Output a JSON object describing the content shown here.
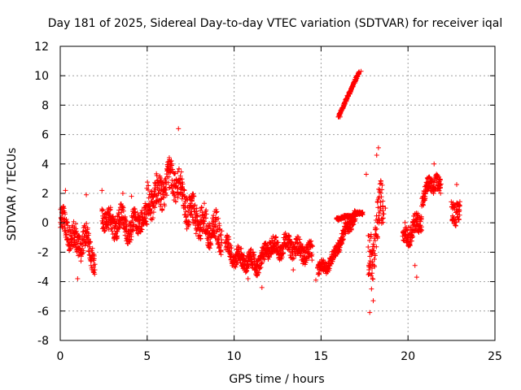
{
  "chart_data": {
    "type": "scatter",
    "title": "Day 181 of 2025, Sidereal Day-to-day VTEC variation (SDTVAR) for receiver iqal",
    "xlabel": "GPS time / hours",
    "ylabel": "SDTVAR / TECUs",
    "xlim": [
      0,
      25
    ],
    "ylim": [
      -8,
      12
    ],
    "xticks": [
      0,
      5,
      10,
      15,
      20,
      25
    ],
    "yticks": [
      -8,
      -6,
      -4,
      -2,
      0,
      2,
      4,
      6,
      8,
      10,
      12
    ],
    "grid": true,
    "marker": "+",
    "series_color": "#ff0000",
    "segments": [
      {
        "x": [
          0.0,
          0.5,
          1.0,
          1.5,
          2.0
        ],
        "y": [
          0.2,
          -0.6,
          -1.5,
          -1.0,
          -2.6
        ],
        "spread": 1.3
      },
      {
        "x": [
          2.4,
          3.0,
          3.6,
          4.0,
          4.5,
          5.0
        ],
        "y": [
          0.6,
          -0.3,
          0.3,
          -0.6,
          0.3,
          0.2
        ],
        "spread": 1.2
      },
      {
        "x": [
          5.0,
          5.5,
          6.0,
          6.5,
          7.0,
          7.5,
          8.0,
          8.5,
          9.0,
          9.3
        ],
        "y": [
          1.5,
          1.8,
          2.5,
          3.2,
          2.0,
          0.6,
          0.2,
          -0.5,
          -0.6,
          -1.0
        ],
        "spread": 1.6
      },
      {
        "x": [
          9.5,
          10.0,
          10.5,
          11.0,
          11.5,
          12.0,
          12.5,
          13.0,
          13.5,
          14.0,
          14.5
        ],
        "y": [
          -1.5,
          -2.3,
          -2.5,
          -2.7,
          -2.8,
          -1.5,
          -1.8,
          -1.4,
          -1.7,
          -2.0,
          -2.1
        ],
        "spread": 0.9
      },
      {
        "x": [
          14.8,
          15.2,
          15.6,
          16.0,
          16.4,
          16.8,
          17.0
        ],
        "y": [
          -3.2,
          -3.0,
          -2.6,
          -1.5,
          -0.6,
          0.2,
          0.5
        ],
        "spread": 0.6
      },
      {
        "x": [
          16.0,
          16.4,
          16.8,
          17.2
        ],
        "y": [
          7.3,
          8.2,
          9.3,
          10.2
        ],
        "spread": 0.15
      },
      {
        "x": [
          15.9,
          16.5,
          17.0,
          17.4
        ],
        "y": [
          0.3,
          0.4,
          0.6,
          0.7
        ],
        "spread": 0.15
      },
      {
        "x": [
          17.7,
          18.0,
          18.3,
          18.6
        ],
        "y": [
          -3.0,
          -2.0,
          0.5,
          1.0
        ],
        "spread": 2.2
      },
      {
        "x": [
          19.7,
          20.0,
          20.4,
          20.8
        ],
        "y": [
          -1.0,
          -0.7,
          -0.3,
          0.3
        ],
        "spread": 1.0
      },
      {
        "x": [
          20.8,
          21.2,
          21.6,
          21.9
        ],
        "y": [
          1.5,
          2.5,
          2.8,
          2.2
        ],
        "spread": 0.8
      },
      {
        "x": [
          22.5,
          22.8,
          23.0
        ],
        "y": [
          0.5,
          1.0,
          1.0
        ],
        "spread": 1.2
      }
    ],
    "points": [
      [
        16.1,
        7.2
      ],
      [
        17.3,
        10.3
      ],
      [
        6.8,
        6.4
      ],
      [
        18.3,
        5.1
      ],
      [
        18.2,
        4.6
      ],
      [
        21.5,
        4.0
      ],
      [
        1.5,
        1.9
      ],
      [
        1.0,
        -3.8
      ],
      [
        1.9,
        -3.3
      ],
      [
        17.8,
        -6.1
      ],
      [
        18.0,
        -5.3
      ],
      [
        17.9,
        -4.5
      ],
      [
        11.6,
        -4.4
      ],
      [
        14.7,
        -3.9
      ],
      [
        20.5,
        -3.7
      ],
      [
        20.4,
        -2.9
      ],
      [
        20.2,
        -0.8
      ],
      [
        20.6,
        -0.2
      ],
      [
        0.3,
        2.2
      ],
      [
        2.4,
        2.2
      ],
      [
        3.6,
        2.0
      ],
      [
        4.1,
        1.8
      ],
      [
        13.4,
        -3.2
      ],
      [
        10.8,
        -3.8
      ],
      [
        22.8,
        2.6
      ],
      [
        17.6,
        3.3
      ],
      [
        18.7,
        1.0
      ]
    ]
  }
}
